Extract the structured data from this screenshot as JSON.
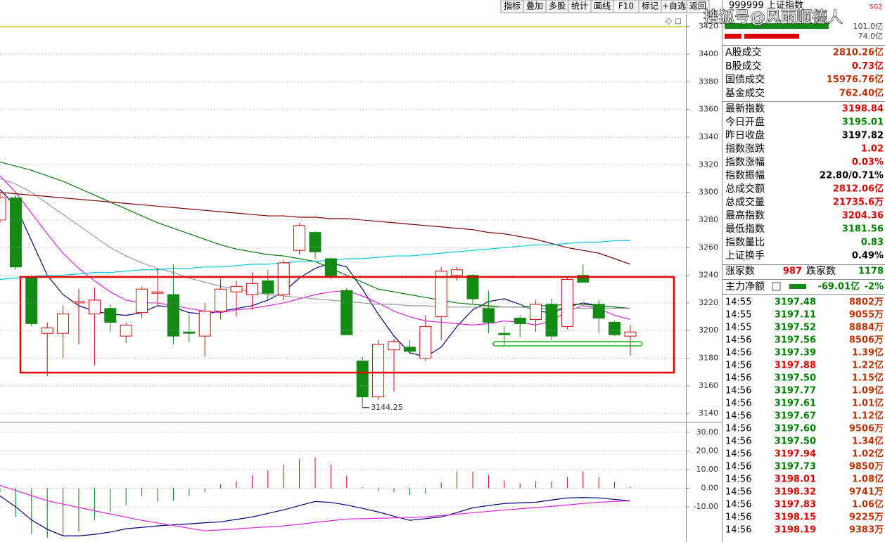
{
  "chart_data": [
    {
      "type": "candlestick",
      "up_color": "#e00000",
      "down_color": "#138a13",
      "open": [
        3280,
        3296,
        3238,
        3198,
        3198,
        3220,
        3212,
        3216,
        3196,
        3213,
        3227,
        3226,
        3199,
        3196,
        3214,
        3228,
        3226,
        3236,
        3226,
        3258,
        3271,
        3252,
        3229,
        3178,
        3152,
        3186,
        3188,
        3180,
        3210,
        3240,
        3240,
        3216,
        3198,
        3209,
        3208,
        3219,
        3203,
        3240,
        3219,
        3206,
        3196
      ],
      "high": [
        3300,
        3298,
        3240,
        3206,
        3218,
        3230,
        3231,
        3219,
        3206,
        3232,
        3245,
        3248,
        3212,
        3220,
        3238,
        3236,
        3242,
        3244,
        3251,
        3278,
        3272,
        3253,
        3231,
        3181,
        3193,
        3194,
        3193,
        3211,
        3246,
        3246,
        3241,
        3229,
        3203,
        3211,
        3222,
        3223,
        3239,
        3248,
        3222,
        3207,
        3204
      ],
      "low": [
        3278,
        3244,
        3203,
        3167,
        3180,
        3190,
        3175,
        3199,
        3191,
        3209,
        3218,
        3190,
        3192,
        3181,
        3208,
        3210,
        3215,
        3222,
        3222,
        3255,
        3252,
        3237,
        3197,
        3144.25,
        3150,
        3156,
        3183,
        3178,
        3193,
        3236,
        3219,
        3198,
        3189,
        3195,
        3199,
        3193,
        3201,
        3235,
        3198,
        3196,
        3182
      ],
      "close": [
        3296,
        3246,
        3205,
        3202,
        3212,
        3221,
        3222,
        3206,
        3204,
        3230,
        3228,
        3196,
        3198,
        3214,
        3230,
        3232,
        3234,
        3227,
        3249,
        3276,
        3257,
        3239,
        3197,
        3152,
        3190,
        3192,
        3185,
        3203,
        3243,
        3244,
        3223,
        3206,
        3197,
        3205,
        3219,
        3196,
        3237,
        3235,
        3209,
        3197,
        3199
      ],
      "ma_lines": [
        {
          "color": "#000080",
          "values": [
            3302,
            3290,
            3265,
            3240,
            3226,
            3218,
            3214,
            3212,
            3211,
            3213,
            3218,
            3217,
            3213,
            3212,
            3214,
            3216,
            3218,
            3222,
            3228,
            3238,
            3245,
            3249,
            3246,
            3230,
            3212,
            3196,
            3184,
            3181,
            3188,
            3203,
            3215,
            3221,
            3223,
            3219,
            3214,
            3213,
            3217,
            3220,
            3218,
            3217,
            3216
          ]
        },
        {
          "color": "#e020e0",
          "values": [
            3312,
            3300,
            3285,
            3270,
            3256,
            3245,
            3236,
            3228,
            3222,
            3220,
            3220,
            3218,
            3216,
            3214,
            3213,
            3215,
            3216,
            3218,
            3220,
            3223,
            3226,
            3228,
            3229,
            3225,
            3220,
            3214,
            3210,
            3207,
            3206,
            3205,
            3204,
            3205,
            3207,
            3206,
            3204,
            3207,
            3214,
            3218,
            3216,
            3211,
            3208
          ]
        },
        {
          "color": "#008000",
          "values": [
            3322,
            3319,
            3316,
            3312,
            3308,
            3303,
            3298,
            3293,
            3288,
            3283,
            3278,
            3274,
            3270,
            3266,
            3262,
            3259,
            3257,
            3255,
            3254,
            3252,
            3250,
            3245,
            3240,
            3235,
            3230,
            3228,
            3226,
            3224,
            3222,
            3220,
            3219,
            3218,
            3217,
            3217,
            3218,
            3218,
            3219,
            3219,
            3218,
            3217,
            3216
          ]
        },
        {
          "color": "#999999",
          "values": [
            3310,
            3306,
            3300,
            3292,
            3284,
            3276,
            3268,
            3260,
            3254,
            3249,
            3245,
            3242,
            3238,
            3235,
            3232,
            3230,
            3228,
            3226,
            3225,
            3224,
            3223,
            3222,
            3221,
            3220,
            3219,
            3219,
            3218,
            3218,
            3217,
            3217,
            3217,
            3217,
            3217,
            3217,
            3216,
            3216,
            3216,
            3216,
            3216,
            3216,
            3216
          ]
        },
        {
          "color": "#800000",
          "values": [
            3300,
            3299,
            3298,
            3297,
            3296,
            3295,
            3294,
            3293,
            3292,
            3291,
            3290,
            3289,
            3288,
            3287,
            3286,
            3285,
            3284,
            3283,
            3283,
            3282,
            3282,
            3281,
            3281,
            3280,
            3279,
            3278,
            3277,
            3276,
            3275,
            3274,
            3273,
            3271,
            3270,
            3268,
            3266,
            3263,
            3260,
            3258,
            3256,
            3252,
            3248
          ]
        },
        {
          "color": "#00c8e0",
          "values": [
            3237,
            3238,
            3239,
            3240,
            3240,
            3241,
            3242,
            3242,
            3243,
            3244,
            3244,
            3245,
            3245,
            3246,
            3246,
            3247,
            3248,
            3248,
            3249,
            3250,
            3250,
            3251,
            3252,
            3252,
            3253,
            3254,
            3254,
            3255,
            3256,
            3257,
            3258,
            3259,
            3260,
            3261,
            3262,
            3262,
            3263,
            3264,
            3264,
            3265,
            3265
          ]
        }
      ],
      "low_label_index": 23,
      "ylim": [
        3134,
        3429
      ],
      "yticks": [
        3140,
        3160,
        3180,
        3200,
        3220,
        3240,
        3260,
        3280,
        3300,
        3320,
        3340,
        3360,
        3380,
        3400,
        3420
      ],
      "grid": true
    },
    {
      "type": "macd",
      "up_color": "#e00000",
      "down_color": "#008000",
      "values": [
        -2,
        -15.4,
        -24.7,
        -26.6,
        -25.5,
        -23.2,
        -17.2,
        -12.7,
        -9,
        -4.1,
        -7.1,
        -6.7,
        -4.1,
        -2.2,
        2.2,
        3.7,
        7.1,
        9.7,
        12.7,
        15.7,
        16.5,
        12.7,
        6.7,
        0.7,
        -1.5,
        -2.2,
        -3.7,
        -3,
        3,
        9,
        9,
        7.1,
        4.1,
        2.6,
        3.7,
        3.7,
        6,
        9,
        6,
        3.4,
        0.7
      ],
      "series": [
        {
          "color": "#000080",
          "values": [
            -4.1,
            -10,
            -17,
            -22,
            -25.5,
            -25.5,
            -24.7,
            -23.5,
            -21.7,
            -21,
            -20.2,
            -19.6,
            -19.1,
            -18.5,
            -18,
            -16.7,
            -15.4,
            -13.5,
            -11.6,
            -9.3,
            -7.1,
            -7.6,
            -9,
            -10.8,
            -12.7,
            -15,
            -17.2,
            -16.3,
            -15.4,
            -13,
            -10.5,
            -9.3,
            -8.2,
            -7.8,
            -7.5,
            -6.3,
            -5.2,
            -5,
            -5.2,
            -6,
            -6.7
          ]
        },
        {
          "color": "#e020e0",
          "values": [
            1.5,
            -1.2,
            -4,
            -6.7,
            -8.5,
            -10.3,
            -12.1,
            -13.8,
            -15.5,
            -17.2,
            -18.6,
            -20,
            -21.4,
            -22.8,
            -22.3,
            -21.8,
            -21.2,
            -20.7,
            -20.2,
            -19.3,
            -18.3,
            -17.4,
            -16.5,
            -16.3,
            -16.1,
            -15.9,
            -15.7,
            -15.4,
            -14.6,
            -13.9,
            -13.1,
            -12.4,
            -11.7,
            -11,
            -10.4,
            -9.7,
            -9,
            -8.2,
            -7.5,
            -7.1,
            -6.7
          ]
        }
      ],
      "ylim": [
        -28.8,
        35.2
      ],
      "yticks": [
        {
          "value": 30,
          "label": "30.00"
        },
        {
          "value": 20,
          "label": "20.00"
        },
        {
          "value": 10,
          "label": "10.00"
        },
        {
          "value": 0,
          "label": "0.00"
        },
        {
          "value": -10,
          "label": "-10.00"
        }
      ],
      "grid": true
    }
  ],
  "toolbar": [
    "指标",
    "叠加",
    "多股",
    "统计",
    "画线",
    "F10",
    "标记",
    "+自选",
    "返回"
  ],
  "header": {
    "code": "999999",
    "name": "上证指数",
    "tag": "SG2",
    "watermark": "搜狐号@风雨顺德人",
    "amount1": "101.0亿",
    "amount2": "74.0亿"
  },
  "quote_rows": [
    [
      "A股成交",
      "2810.26亿"
    ],
    [
      "B股成交",
      "0.73亿"
    ],
    [
      "国债成交",
      "15976.76亿"
    ],
    [
      "基金成交",
      "762.40亿"
    ],
    [
      "最新指数",
      "3198.84"
    ],
    [
      "今日开盘",
      "3195.01"
    ],
    [
      "昨日收盘",
      "3197.82"
    ],
    [
      "指数涨跌",
      "1.02"
    ],
    [
      "指数涨幅",
      "0.03%"
    ],
    [
      "指数振幅",
      "22.80/0.71%"
    ],
    [
      "总成交额",
      "2812.06亿"
    ],
    [
      "总成交量",
      "21735.6万"
    ],
    [
      "最高指数",
      "3204.36"
    ],
    [
      "最低指数",
      "3181.56"
    ],
    [
      "指数量比",
      "0.83"
    ],
    [
      "上证换手",
      "0.49%"
    ]
  ],
  "quote_colors": [
    "#c03000",
    "#e00000",
    "#c03000",
    "#c03000",
    "#e00000",
    "#008000",
    "#000000",
    "#e00000",
    "#e00000",
    "#000000",
    "#e00000",
    "#e00000",
    "#e00000",
    "#008000",
    "#008000",
    "#000000"
  ],
  "breadth": {
    "up_label": "涨家数",
    "up": "987",
    "down_label": "跌家数",
    "down": "1178"
  },
  "main_flow": {
    "label": "主力净额",
    "value": "-69.01亿",
    "pct": "-2%"
  },
  "ticks": [
    [
      "14:55",
      "3197.48",
      "8802万"
    ],
    [
      "14:55",
      "3197.11",
      "9055万"
    ],
    [
      "14:55",
      "3197.52",
      "8884万"
    ],
    [
      "14:56",
      "3197.56",
      "8506万"
    ],
    [
      "14:56",
      "3197.39",
      "1.39亿"
    ],
    [
      "14:56",
      "3197.88",
      "1.22亿"
    ],
    [
      "14:56",
      "3197.50",
      "1.15亿"
    ],
    [
      "14:56",
      "3197.77",
      "1.09亿"
    ],
    [
      "14:56",
      "3197.61",
      "1.01亿"
    ],
    [
      "14:56",
      "3197.67",
      "1.12亿"
    ],
    [
      "14:56",
      "3197.60",
      "9506万"
    ],
    [
      "14:56",
      "3197.50",
      "1.34亿"
    ],
    [
      "14:56",
      "3197.94",
      "1.02亿"
    ],
    [
      "14:56",
      "3197.73",
      "9850万"
    ],
    [
      "14:56",
      "3198.01",
      "1.08亿"
    ],
    [
      "14:56",
      "3198.32",
      "9741万"
    ],
    [
      "14:56",
      "3197.83",
      "1.06亿"
    ],
    [
      "14:56",
      "3198.15",
      "9225万"
    ],
    [
      "14:56",
      "3198.19",
      "9383万"
    ]
  ],
  "tick_colors": [
    "#008000",
    "#008000",
    "#008000",
    "#008000",
    "#008000",
    "#e00000",
    "#008000",
    "#008000",
    "#008000",
    "#008000",
    "#008000",
    "#008000",
    "#e00000",
    "#008000",
    "#e00000",
    "#e00000",
    "#e00000",
    "#e00000",
    "#e00000"
  ]
}
